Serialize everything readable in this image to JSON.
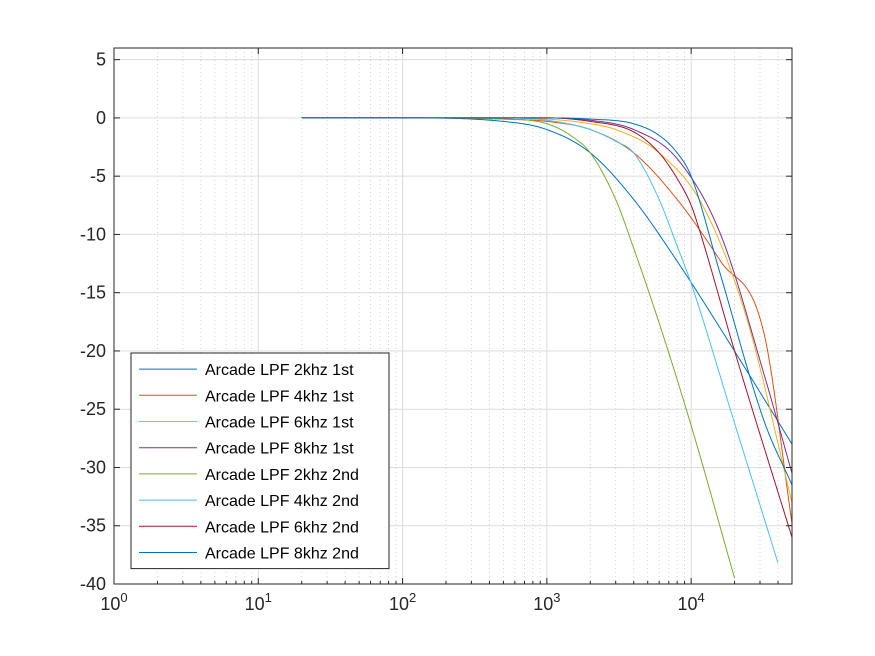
{
  "chart_data": {
    "type": "line",
    "title": "",
    "xlabel": "",
    "ylabel": "",
    "xscale": "log",
    "xlim": [
      1,
      50000
    ],
    "ylim": [
      -40,
      6
    ],
    "grid": true,
    "minor_grid": true,
    "legend_position": "bottom-left",
    "x_ticks": [
      {
        "value": 1,
        "base": "10",
        "exp": "0"
      },
      {
        "value": 10,
        "base": "10",
        "exp": "1"
      },
      {
        "value": 100,
        "base": "10",
        "exp": "2"
      },
      {
        "value": 1000,
        "base": "10",
        "exp": "3"
      },
      {
        "value": 10000,
        "base": "10",
        "exp": "4"
      }
    ],
    "y_ticks": [
      {
        "value": 5,
        "label": "5"
      },
      {
        "value": 0,
        "label": "0"
      },
      {
        "value": -5,
        "label": "-5"
      },
      {
        "value": -10,
        "label": "-10"
      },
      {
        "value": -15,
        "label": "-15"
      },
      {
        "value": -20,
        "label": "-20"
      },
      {
        "value": -25,
        "label": "-25"
      },
      {
        "value": -30,
        "label": "-30"
      },
      {
        "value": -35,
        "label": "-35"
      },
      {
        "value": -40,
        "label": "-40"
      }
    ],
    "series": [
      {
        "name": "Arcade LPF 2khz 1st",
        "color": "#0072BD",
        "x": [
          20,
          100,
          500,
          1000,
          2000,
          4000,
          8000,
          16000,
          32000,
          50000
        ],
        "y": [
          0,
          0,
          -0.3,
          -1.0,
          -3.0,
          -7.0,
          -12.3,
          -18.1,
          -24.1,
          -28.0
        ]
      },
      {
        "name": "Arcade LPF 4khz 1st",
        "color": "#D95319",
        "x": [
          20,
          100,
          500,
          1000,
          2000,
          4000,
          8000,
          16000,
          32000,
          50000
        ],
        "y": [
          0,
          0,
          -0.1,
          -0.3,
          -1.0,
          -3.0,
          -7.0,
          -12.3,
          -18.5,
          -34.8
        ]
      },
      {
        "name": "Arcade LPF 6khz 1st",
        "color": "#EDB120",
        "x": [
          20,
          100,
          500,
          1000,
          2000,
          3000,
          6000,
          12000,
          24000,
          50000
        ],
        "y": [
          0,
          0,
          0,
          -0.1,
          -0.5,
          -1.0,
          -3.0,
          -7.5,
          -17.0,
          -33.0
        ]
      },
      {
        "name": "Arcade LPF 8khz 1st",
        "color": "#7E2F8E",
        "x": [
          20,
          100,
          500,
          1000,
          2000,
          4000,
          8000,
          16000,
          32000,
          50000
        ],
        "y": [
          0,
          0,
          0,
          0,
          -0.2,
          -1.0,
          -3.5,
          -10.0,
          -22.0,
          -30.5
        ]
      },
      {
        "name": "Arcade LPF 2khz 2nd",
        "color": "#77AC30",
        "x": [
          20,
          100,
          500,
          1000,
          1500,
          2000,
          3000,
          4000,
          6000,
          10000,
          20000
        ],
        "y": [
          0,
          0,
          -0.1,
          -0.5,
          -1.6,
          -3.0,
          -7.0,
          -11.2,
          -17.6,
          -26.4,
          -39.5
        ]
      },
      {
        "name": "Arcade LPF 4khz 2nd",
        "color": "#4DBEEE",
        "x": [
          20,
          100,
          500,
          1000,
          2000,
          3000,
          4000,
          6000,
          8000,
          10000,
          20000,
          40000
        ],
        "y": [
          0,
          0,
          0,
          -0.2,
          -1.0,
          -2.0,
          -3.0,
          -7.0,
          -11.0,
          -14.2,
          -26.2,
          -38.2
        ]
      },
      {
        "name": "Arcade LPF 6khz 2nd",
        "color": "#A2142F",
        "x": [
          20,
          100,
          500,
          1000,
          2000,
          4000,
          6000,
          8000,
          10000,
          12000,
          20000,
          50000
        ],
        "y": [
          0,
          0,
          0,
          0,
          -0.3,
          -1.2,
          -3.0,
          -5.2,
          -7.5,
          -10.5,
          -20.0,
          -36.0
        ]
      },
      {
        "name": "Arcade LPF 8khz 2nd",
        "color": "#0072BD",
        "x": [
          20,
          100,
          500,
          1000,
          2000,
          4000,
          6000,
          8000,
          10000,
          16000,
          32000,
          50000
        ],
        "y": [
          0,
          0,
          0,
          0,
          -0.1,
          -0.5,
          -1.5,
          -3.0,
          -5.0,
          -13.5,
          -26.0,
          -31.5
        ]
      }
    ]
  }
}
